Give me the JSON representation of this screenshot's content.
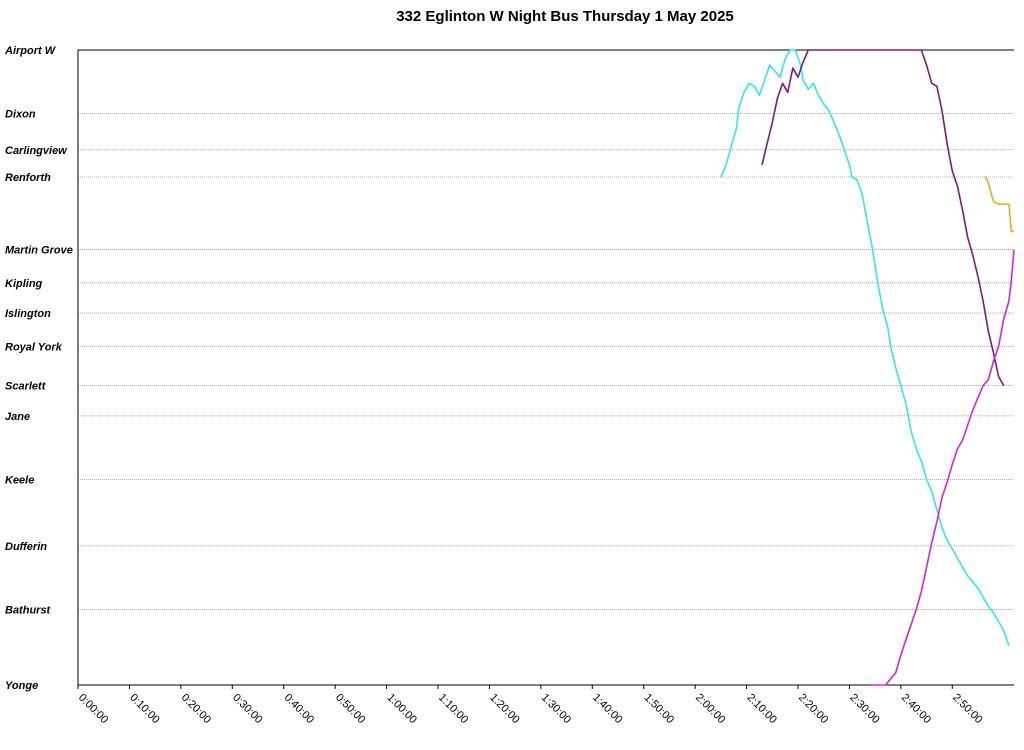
{
  "chart_data": {
    "type": "line",
    "title": "332 Eglinton W Night Bus Thursday 1 May 2025",
    "xlabel": "",
    "ylabel": "",
    "x_ticks": [
      "0:00:00",
      "0:10:00",
      "0:20:00",
      "0:30:00",
      "0:40:00",
      "0:50:00",
      "1:00:00",
      "1:10:00",
      "1:20:00",
      "1:30:00",
      "1:40:00",
      "1:50:00",
      "2:00:00",
      "2:10:00",
      "2:20:00",
      "2:30:00",
      "2:40:00",
      "2:50:00"
    ],
    "x_unit": "minutes after midnight",
    "xlim": [
      0,
      182
    ],
    "ylim": [
      0,
      21.0
    ],
    "y_axis": "distance from Airport W (stop index scale)",
    "grid": "horizontal at stops",
    "legend": "none",
    "stops": [
      {
        "name": "Airport W",
        "pos": 0
      },
      {
        "name": "Dixon",
        "pos": 2.1
      },
      {
        "name": "Carlingview",
        "pos": 3.3
      },
      {
        "name": "Renforth",
        "pos": 4.2
      },
      {
        "name": "Martin Grove",
        "pos": 6.6
      },
      {
        "name": "Kipling",
        "pos": 7.7
      },
      {
        "name": "Islington",
        "pos": 8.7
      },
      {
        "name": "Royal York",
        "pos": 9.8
      },
      {
        "name": "Scarlett",
        "pos": 11.1
      },
      {
        "name": "Jane",
        "pos": 12.1
      },
      {
        "name": "Keele",
        "pos": 14.2
      },
      {
        "name": "Dufferin",
        "pos": 16.4
      },
      {
        "name": "Bathurst",
        "pos": 18.5
      },
      {
        "name": "Yonge",
        "pos": 21.0
      }
    ],
    "series": [
      {
        "color": "#33e6f0",
        "points": [
          [
            125,
            4.2
          ],
          [
            126,
            3.8
          ],
          [
            127,
            3.2
          ],
          [
            128,
            2.6
          ],
          [
            128.5,
            1.9
          ],
          [
            129.5,
            1.4
          ],
          [
            130.5,
            1.1
          ],
          [
            131.5,
            1.2
          ],
          [
            132.5,
            1.5
          ],
          [
            133.5,
            1.0
          ],
          [
            134.5,
            0.5
          ],
          [
            135.5,
            0.7
          ],
          [
            136.5,
            0.9
          ],
          [
            137.5,
            0.3
          ],
          [
            138.5,
            0.0
          ],
          [
            139.5,
            0.0
          ],
          [
            140.5,
            0.5
          ],
          [
            141,
            1.0
          ],
          [
            142,
            1.3
          ],
          [
            143,
            1.1
          ],
          [
            144,
            1.5
          ],
          [
            145,
            1.8
          ],
          [
            146,
            2.0
          ],
          [
            147,
            2.4
          ],
          [
            148,
            2.8
          ],
          [
            149,
            3.3
          ],
          [
            150,
            3.8
          ],
          [
            150.5,
            4.2
          ],
          [
            151.5,
            4.3
          ],
          [
            152.5,
            4.8
          ],
          [
            153.5,
            5.7
          ],
          [
            154.5,
            6.6
          ],
          [
            155.5,
            7.7
          ],
          [
            156.5,
            8.6
          ],
          [
            157.5,
            9.2
          ],
          [
            158,
            9.8
          ],
          [
            159,
            10.5
          ],
          [
            160,
            11.1
          ],
          [
            161,
            11.7
          ],
          [
            162,
            12.6
          ],
          [
            163,
            13.2
          ],
          [
            164,
            13.6
          ],
          [
            165,
            14.2
          ],
          [
            166,
            14.6
          ],
          [
            167,
            15.2
          ],
          [
            168,
            15.8
          ],
          [
            169,
            16.2
          ],
          [
            170,
            16.5
          ],
          [
            171,
            16.8
          ],
          [
            172,
            17.1
          ],
          [
            173,
            17.4
          ],
          [
            174,
            17.6
          ],
          [
            175,
            17.8
          ],
          [
            176,
            18.1
          ],
          [
            177,
            18.4
          ],
          [
            178,
            18.6
          ],
          [
            179,
            18.9
          ],
          [
            180,
            19.2
          ],
          [
            181,
            19.7
          ]
        ]
      },
      {
        "color": "#7a1b7d",
        "points": [
          [
            133,
            3.8
          ],
          [
            134,
            3.1
          ],
          [
            135,
            2.4
          ],
          [
            136,
            1.6
          ],
          [
            137,
            1.1
          ],
          [
            138,
            1.4
          ],
          [
            139,
            0.6
          ],
          [
            140,
            0.9
          ],
          [
            141,
            0.4
          ],
          [
            142,
            0.0
          ],
          [
            160,
            0.0
          ],
          [
            162,
            0.0
          ],
          [
            164,
            0.0
          ],
          [
            165,
            0.5
          ],
          [
            166,
            1.1
          ],
          [
            167,
            1.2
          ],
          [
            168,
            2.0
          ],
          [
            169,
            3.1
          ],
          [
            170,
            4.0
          ],
          [
            171,
            4.5
          ],
          [
            172,
            5.3
          ],
          [
            173,
            6.2
          ],
          [
            174,
            6.8
          ],
          [
            175,
            7.5
          ],
          [
            176,
            8.3
          ],
          [
            177,
            9.3
          ],
          [
            178,
            10.0
          ],
          [
            179,
            10.8
          ],
          [
            180,
            11.1
          ]
        ]
      },
      {
        "color": "#f5a623",
        "points": [
          [
            176.5,
            4.2
          ],
          [
            177,
            4.4
          ],
          [
            178,
            5.0
          ],
          [
            179,
            5.1
          ],
          [
            180,
            5.1
          ],
          [
            181,
            5.1
          ],
          [
            181.5,
            6.0
          ],
          [
            182,
            6.0
          ]
        ]
      },
      {
        "color": "#d326d6",
        "points": [
          [
            154,
            21.0
          ],
          [
            155,
            21.0
          ],
          [
            156,
            21.0
          ],
          [
            157,
            21.0
          ],
          [
            158,
            20.8
          ],
          [
            159,
            20.6
          ],
          [
            160,
            20.0
          ],
          [
            161,
            19.5
          ],
          [
            162,
            19.0
          ],
          [
            163,
            18.5
          ],
          [
            164,
            17.9
          ],
          [
            165,
            17.1
          ],
          [
            166,
            16.3
          ],
          [
            167,
            15.6
          ],
          [
            168,
            14.8
          ],
          [
            169,
            14.3
          ],
          [
            170,
            13.7
          ],
          [
            171,
            13.2
          ],
          [
            172,
            12.9
          ],
          [
            173,
            12.4
          ],
          [
            174,
            11.9
          ],
          [
            175,
            11.5
          ],
          [
            176,
            11.1
          ],
          [
            177,
            10.9
          ],
          [
            178,
            10.3
          ],
          [
            179,
            9.8
          ],
          [
            180,
            8.9
          ],
          [
            181,
            8.3
          ],
          [
            181.5,
            7.6
          ],
          [
            182,
            6.6
          ]
        ]
      }
    ]
  }
}
